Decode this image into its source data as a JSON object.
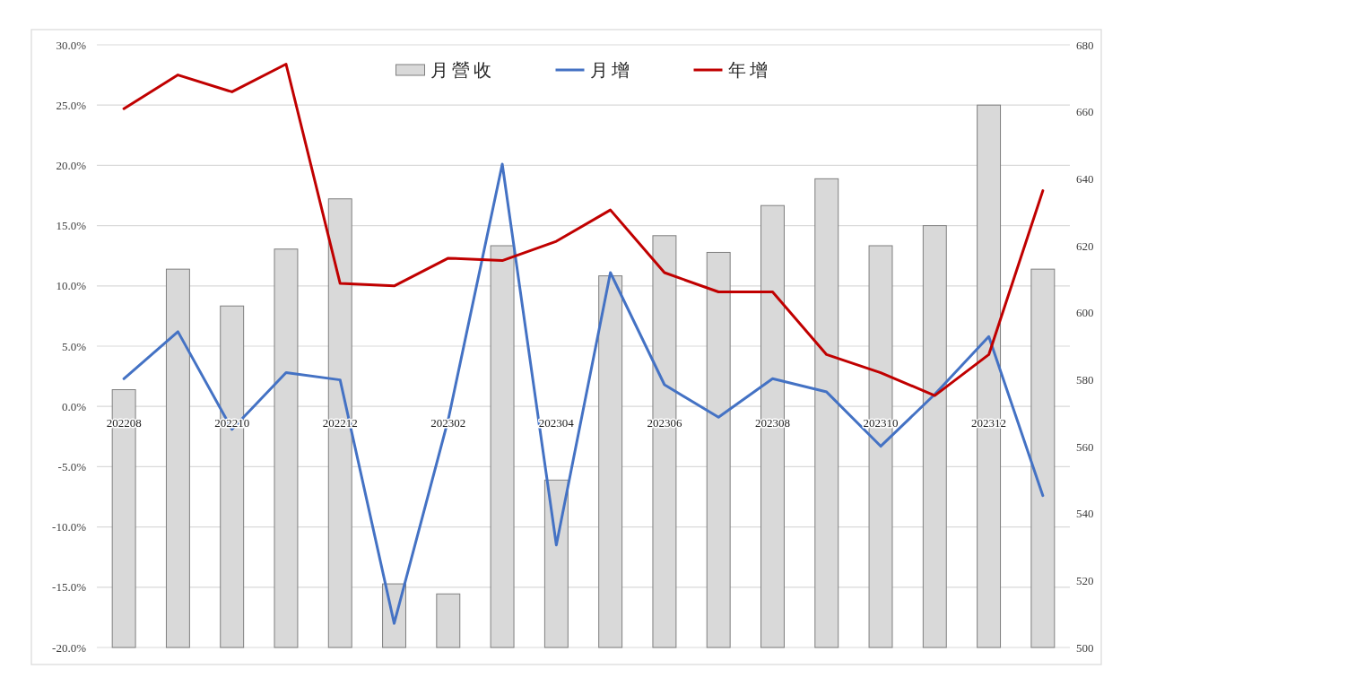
{
  "chart_data": {
    "type": "bar",
    "categories": [
      "202208",
      null,
      "202210",
      null,
      "202212",
      null,
      "202302",
      null,
      "202304",
      null,
      "202306",
      null,
      "202308",
      null,
      "202310",
      null,
      "202312",
      null
    ],
    "series": [
      {
        "name": "月營收",
        "axis": "y2",
        "color": "#d9d9d9",
        "values": [
          577,
          613,
          602,
          619,
          634,
          519,
          516,
          620,
          550,
          611,
          623,
          618,
          632,
          640,
          620,
          626,
          662,
          613
        ]
      },
      {
        "name": "月增",
        "type": "line",
        "color": "#4472c4",
        "values": [
          2.3,
          6.2,
          -1.9,
          2.8,
          2.2,
          -18.0,
          -1.1,
          20.1,
          -11.5,
          11.1,
          1.8,
          -0.9,
          2.3,
          1.2,
          -3.3,
          1.0,
          5.8,
          -7.4
        ]
      },
      {
        "name": "年增",
        "type": "line",
        "color": "#c00000",
        "values": [
          24.7,
          27.5,
          26.1,
          28.4,
          10.2,
          10.0,
          12.3,
          12.1,
          13.7,
          16.3,
          11.1,
          9.5,
          9.5,
          4.3,
          2.8,
          0.9,
          4.3,
          17.9
        ]
      }
    ],
    "ylim": [
      -20,
      30
    ],
    "yticks": [
      {
        "value": -20,
        "label": "-20.0%"
      },
      {
        "value": -15,
        "label": "-15.0%"
      },
      {
        "value": -10,
        "label": "-10.0%"
      },
      {
        "value": -5,
        "label": "-5.0%"
      },
      {
        "value": 0,
        "label": "0.0%"
      },
      {
        "value": 5,
        "label": "5.0%"
      },
      {
        "value": 10,
        "label": "10.0%"
      },
      {
        "value": 15,
        "label": "15.0%"
      },
      {
        "value": 20,
        "label": "20.0%"
      },
      {
        "value": 25,
        "label": "25.0%"
      },
      {
        "value": 30,
        "label": "30.0%"
      }
    ],
    "y2lim": [
      500,
      680
    ],
    "y2ticks": [
      500,
      520,
      540,
      560,
      580,
      600,
      620,
      640,
      660,
      680
    ],
    "grid": "y",
    "legend": "top"
  }
}
